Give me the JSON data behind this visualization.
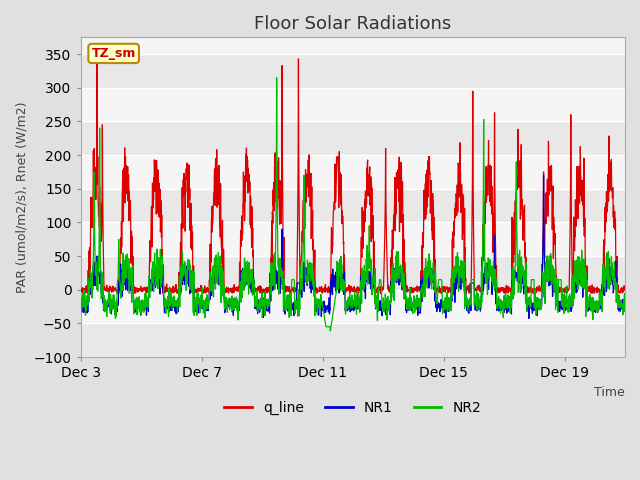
{
  "title": "Floor Solar Radiations",
  "xlabel": "Time",
  "ylabel": "PAR (umol/m2/s), Rnet (W/m2)",
  "ylim": [
    -100,
    375
  ],
  "yticks": [
    -100,
    -50,
    0,
    50,
    100,
    150,
    200,
    250,
    300,
    350
  ],
  "xtick_labels": [
    "Dec 3",
    "Dec 7",
    "Dec 11",
    "Dec 15",
    "Dec 19"
  ],
  "xtick_positions": [
    0,
    4,
    8,
    12,
    16
  ],
  "xlim": [
    0,
    18
  ],
  "legend_labels": [
    "q_line",
    "NR1",
    "NR2"
  ],
  "legend_colors": [
    "#dd0000",
    "#0000cc",
    "#00bb00"
  ],
  "annotation_text": "TZ_sm",
  "annotation_color": "#cc0000",
  "bg_color": "#e0e0e0",
  "plot_bg_color": "#f5f5f5",
  "grid_color": "#ffffff",
  "title_fontsize": 13,
  "axis_fontsize": 9,
  "tick_fontsize": 10,
  "n_points": 2000,
  "seed": 7
}
